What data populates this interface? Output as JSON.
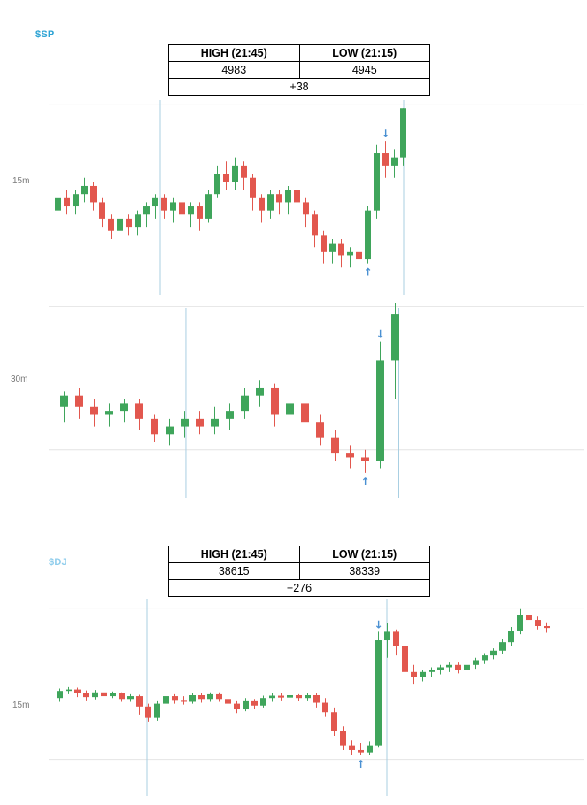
{
  "colors": {
    "candle_up": "#3fa55b",
    "candle_down": "#e2574e",
    "signal_arrow": "#4a90d2",
    "session_line": "#a9cfe2",
    "gridline": "#e4e4e4",
    "sp_symbol": "#2da3d4",
    "dj_symbol": "#8fcdec"
  },
  "sp": {
    "symbol": "$SP",
    "table": {
      "high_header": "HIGH (21:45)",
      "low_header": "LOW (21:15)",
      "high": "4983",
      "low": "4945",
      "change": "+38"
    },
    "timeframes": [
      "15m",
      "30m"
    ]
  },
  "dj": {
    "symbol": "$DJ",
    "table": {
      "high_header": "HIGH (21:45)",
      "low_header": "LOW (21:15)",
      "high": "38615",
      "low": "38339",
      "change": "+276"
    },
    "timeframes": [
      "15m"
    ]
  },
  "chart_data": [
    {
      "type": "candlestick",
      "symbol": "$SP",
      "timeframe": "15m",
      "high": 4983,
      "low": 4945,
      "price_range": [
        4938,
        4985
      ],
      "price_gridlines": [
        4984
      ],
      "session_line_indices": [
        11.9,
        39.4
      ],
      "arrows": [
        {
          "index": 37,
          "dir": "down"
        },
        {
          "index": 35,
          "dir": "up"
        }
      ],
      "candles": [
        [
          4958,
          4962,
          4956,
          4961
        ],
        [
          4961,
          4963,
          4957,
          4959
        ],
        [
          4959,
          4963,
          4957,
          4962
        ],
        [
          4962,
          4966,
          4960,
          4964
        ],
        [
          4964,
          4965,
          4958,
          4960
        ],
        [
          4960,
          4961,
          4954,
          4956
        ],
        [
          4956,
          4957,
          4951,
          4953
        ],
        [
          4953,
          4957,
          4952,
          4956
        ],
        [
          4956,
          4957,
          4952,
          4954
        ],
        [
          4954,
          4958,
          4952,
          4957
        ],
        [
          4957,
          4960,
          4954,
          4959
        ],
        [
          4959,
          4962,
          4956,
          4961
        ],
        [
          4961,
          4962,
          4956,
          4958
        ],
        [
          4958,
          4961,
          4955,
          4960
        ],
        [
          4960,
          4961,
          4954,
          4957
        ],
        [
          4957,
          4960,
          4954,
          4959
        ],
        [
          4959,
          4960,
          4953,
          4956
        ],
        [
          4956,
          4963,
          4955,
          4962
        ],
        [
          4962,
          4969,
          4961,
          4967
        ],
        [
          4967,
          4970,
          4963,
          4965
        ],
        [
          4965,
          4971,
          4963,
          4969
        ],
        [
          4969,
          4970,
          4963,
          4966
        ],
        [
          4966,
          4967,
          4958,
          4961
        ],
        [
          4961,
          4962,
          4955,
          4958
        ],
        [
          4958,
          4963,
          4956,
          4962
        ],
        [
          4962,
          4963,
          4957,
          4960
        ],
        [
          4960,
          4964,
          4957,
          4963
        ],
        [
          4963,
          4965,
          4957,
          4960
        ],
        [
          4960,
          4961,
          4954,
          4957
        ],
        [
          4957,
          4958,
          4949,
          4952
        ],
        [
          4952,
          4953,
          4945,
          4948
        ],
        [
          4948,
          4951,
          4945,
          4950
        ],
        [
          4950,
          4951,
          4944,
          4947
        ],
        [
          4947,
          4949,
          4944,
          4948
        ],
        [
          4948,
          4949,
          4943,
          4946
        ],
        [
          4946,
          4959,
          4945,
          4958
        ],
        [
          4958,
          4974,
          4956,
          4972
        ],
        [
          4972,
          4975,
          4966,
          4969
        ],
        [
          4969,
          4973,
          4966,
          4971
        ],
        [
          4971,
          4983,
          4969,
          4983
        ]
      ]
    },
    {
      "type": "candlestick",
      "symbol": "$SP",
      "timeframe": "30m",
      "high": 4983,
      "low": 4945,
      "price_range": [
        4940,
        4987
      ],
      "price_gridlines": [
        4986,
        4949
      ],
      "session_line_indices": [
        8.35,
        22.5
      ],
      "arrows": [
        {
          "index": 21,
          "dir": "down"
        },
        {
          "index": 20,
          "dir": "up"
        }
      ],
      "candles": [
        [
          4960,
          4964,
          4956,
          4963
        ],
        [
          4963,
          4965,
          4957,
          4960
        ],
        [
          4960,
          4962,
          4955,
          4958
        ],
        [
          4958,
          4961,
          4955,
          4959
        ],
        [
          4959,
          4962,
          4956,
          4961
        ],
        [
          4961,
          4962,
          4954,
          4957
        ],
        [
          4957,
          4958,
          4951,
          4953
        ],
        [
          4953,
          4957,
          4950,
          4955
        ],
        [
          4955,
          4959,
          4952,
          4957
        ],
        [
          4957,
          4959,
          4953,
          4955
        ],
        [
          4955,
          4960,
          4953,
          4957
        ],
        [
          4957,
          4961,
          4954,
          4959
        ],
        [
          4959,
          4965,
          4957,
          4963
        ],
        [
          4963,
          4967,
          4960,
          4965
        ],
        [
          4965,
          4966,
          4955,
          4958
        ],
        [
          4958,
          4964,
          4953,
          4961
        ],
        [
          4961,
          4963,
          4953,
          4956
        ],
        [
          4956,
          4958,
          4950,
          4952
        ],
        [
          4952,
          4954,
          4946,
          4948
        ],
        [
          4948,
          4950,
          4944,
          4947
        ],
        [
          4947,
          4949,
          4943,
          4946
        ],
        [
          4946,
          4977,
          4944,
          4972
        ],
        [
          4972,
          4987,
          4962,
          4984
        ]
      ]
    },
    {
      "type": "candlestick",
      "symbol": "$DJ",
      "timeframe": "15m",
      "high": 38615,
      "low": 38339,
      "price_range": [
        38320,
        38670
      ],
      "price_gridlines": [
        38650,
        38330
      ],
      "session_line_indices": [
        10.2,
        37.3
      ],
      "arrows": [
        {
          "index": 36,
          "dir": "down"
        },
        {
          "index": 34,
          "dir": "up"
        }
      ],
      "candles": [
        [
          38460,
          38480,
          38452,
          38475
        ],
        [
          38475,
          38483,
          38468,
          38478
        ],
        [
          38478,
          38482,
          38462,
          38470
        ],
        [
          38470,
          38476,
          38455,
          38462
        ],
        [
          38462,
          38477,
          38457,
          38472
        ],
        [
          38472,
          38476,
          38458,
          38464
        ],
        [
          38464,
          38474,
          38460,
          38470
        ],
        [
          38470,
          38472,
          38452,
          38458
        ],
        [
          38458,
          38468,
          38452,
          38464
        ],
        [
          38464,
          38467,
          38425,
          38442
        ],
        [
          38442,
          38448,
          38410,
          38418
        ],
        [
          38418,
          38455,
          38412,
          38448
        ],
        [
          38448,
          38470,
          38442,
          38464
        ],
        [
          38464,
          38468,
          38448,
          38456
        ],
        [
          38456,
          38464,
          38446,
          38452
        ],
        [
          38452,
          38470,
          38448,
          38466
        ],
        [
          38466,
          38470,
          38450,
          38458
        ],
        [
          38458,
          38472,
          38452,
          38468
        ],
        [
          38468,
          38472,
          38452,
          38458
        ],
        [
          38458,
          38463,
          38438,
          38448
        ],
        [
          38448,
          38455,
          38428,
          38436
        ],
        [
          38436,
          38460,
          38432,
          38455
        ],
        [
          38455,
          38458,
          38436,
          38444
        ],
        [
          38444,
          38465,
          38440,
          38460
        ],
        [
          38460,
          38470,
          38452,
          38465
        ],
        [
          38465,
          38470,
          38455,
          38461
        ],
        [
          38461,
          38470,
          38456,
          38466
        ],
        [
          38466,
          38468,
          38454,
          38460
        ],
        [
          38460,
          38470,
          38455,
          38466
        ],
        [
          38466,
          38470,
          38440,
          38450
        ],
        [
          38450,
          38460,
          38420,
          38430
        ],
        [
          38430,
          38440,
          38380,
          38390
        ],
        [
          38390,
          38400,
          38350,
          38360
        ],
        [
          38360,
          38370,
          38340,
          38350
        ],
        [
          38350,
          38365,
          38339,
          38345
        ],
        [
          38345,
          38368,
          38340,
          38360
        ],
        [
          38360,
          38600,
          38355,
          38582
        ],
        [
          38582,
          38618,
          38545,
          38600
        ],
        [
          38600,
          38605,
          38550,
          38570
        ],
        [
          38570,
          38580,
          38500,
          38515
        ],
        [
          38515,
          38530,
          38490,
          38505
        ],
        [
          38505,
          38520,
          38495,
          38515
        ],
        [
          38515,
          38525,
          38505,
          38520
        ],
        [
          38520,
          38530,
          38510,
          38525
        ],
        [
          38525,
          38535,
          38515,
          38530
        ],
        [
          38530,
          38535,
          38512,
          38520
        ],
        [
          38520,
          38535,
          38512,
          38530
        ],
        [
          38530,
          38545,
          38522,
          38540
        ],
        [
          38540,
          38555,
          38532,
          38550
        ],
        [
          38550,
          38565,
          38542,
          38560
        ],
        [
          38560,
          38585,
          38552,
          38578
        ],
        [
          38578,
          38610,
          38570,
          38602
        ],
        [
          38602,
          38648,
          38595,
          38635
        ],
        [
          38635,
          38645,
          38618,
          38625
        ],
        [
          38625,
          38632,
          38605,
          38612
        ],
        [
          38612,
          38620,
          38598,
          38608
        ]
      ]
    }
  ]
}
